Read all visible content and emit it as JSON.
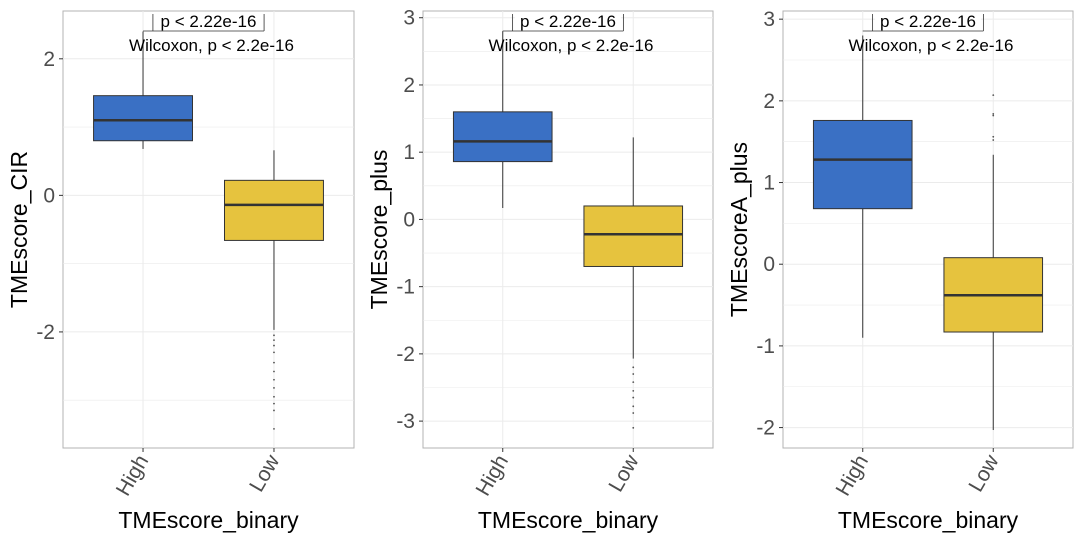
{
  "colors": {
    "high": "#3a70c4",
    "low": "#e6c33e",
    "panel_border": "#b3b3b3",
    "grid": "#ebebeb",
    "median": "#333333"
  },
  "chart_data": [
    {
      "type": "box",
      "xlabel": "TMEscore_binary",
      "ylabel": "TMEscore_CIR",
      "categories": [
        "High",
        "Low"
      ],
      "ylim": [
        -3.7,
        2.7
      ],
      "yticks": [
        -2,
        0,
        2
      ],
      "yticklabels": [
        "-2",
        "0",
        "2"
      ],
      "annotation_top": "p < 2.22e-16",
      "annotation_test": "Wilcoxon, p < 2.2e-16",
      "boxes": [
        {
          "category": "High",
          "whisker_low": 0.68,
          "q1": 0.8,
          "median": 1.1,
          "q3": 1.46,
          "whisker_high": 2.4,
          "outliers": []
        },
        {
          "category": "Low",
          "whisker_low": -1.97,
          "q1": -0.66,
          "median": -0.14,
          "q3": 0.22,
          "whisker_high": 0.66,
          "outliers": [
            -2.05,
            -2.12,
            -2.2,
            -2.3,
            -2.45,
            -2.58,
            -2.7,
            -2.82,
            -2.95,
            -3.05,
            -3.15,
            -3.42
          ]
        }
      ]
    },
    {
      "type": "box",
      "xlabel": "TMEscore_binary",
      "ylabel": "TMEscore_plus",
      "categories": [
        "High",
        "Low"
      ],
      "ylim": [
        -3.4,
        3.1
      ],
      "yticks": [
        -3,
        -2,
        -1,
        0,
        1,
        2,
        3
      ],
      "yticklabels": [
        "-3",
        "-2",
        "-1",
        "0",
        "1",
        "2",
        "3"
      ],
      "annotation_top": "p < 2.22e-16",
      "annotation_test": "Wilcoxon, p < 2.2e-16",
      "boxes": [
        {
          "category": "High",
          "whisker_low": 0.17,
          "q1": 0.86,
          "median": 1.16,
          "q3": 1.6,
          "whisker_high": 2.8,
          "outliers": []
        },
        {
          "category": "Low",
          "whisker_low": -2.07,
          "q1": -0.7,
          "median": -0.22,
          "q3": 0.2,
          "whisker_high": 1.22,
          "outliers": [
            -2.2,
            -2.3,
            -2.42,
            -2.55,
            -2.65,
            -2.78,
            -2.88,
            -3.1
          ]
        }
      ]
    },
    {
      "type": "box",
      "xlabel": "TMEscore_binary",
      "ylabel": "TMEscoreA_plus",
      "categories": [
        "High",
        "Low"
      ],
      "ylim": [
        -2.25,
        3.1
      ],
      "yticks": [
        -2,
        -1,
        0,
        1,
        2,
        3
      ],
      "yticklabels": [
        "-2",
        "-1",
        "0",
        "1",
        "2",
        "3"
      ],
      "annotation_top": "p < 2.22e-16",
      "annotation_test": "Wilcoxon, p < 2.2e-16",
      "boxes": [
        {
          "category": "High",
          "whisker_low": -0.9,
          "q1": 0.68,
          "median": 1.28,
          "q3": 1.76,
          "whisker_high": 2.8,
          "outliers": []
        },
        {
          "category": "Low",
          "whisker_low": -2.03,
          "q1": -0.83,
          "median": -0.38,
          "q3": 0.08,
          "whisker_high": 1.34,
          "outliers": [
            1.52,
            1.56,
            1.82,
            1.84,
            2.07
          ]
        }
      ]
    }
  ]
}
